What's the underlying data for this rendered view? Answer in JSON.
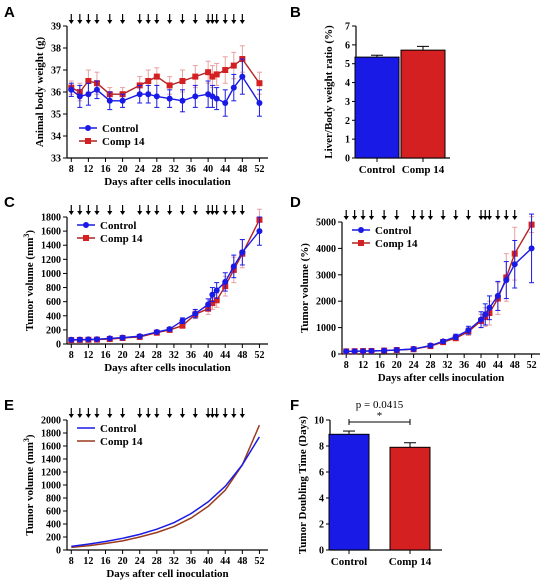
{
  "colors": {
    "control": "#1a1ae6",
    "comp14": "#b22222",
    "comp14_marker": "#d42020",
    "comp14_line": "#9a3a1e",
    "errbar": "#e8a0a0",
    "arrow": "#000000"
  },
  "chart_data": [
    {
      "id": "A",
      "letter": "A",
      "type": "line",
      "xlabel": "Days after cells inoculation",
      "ylabel": "Animal body weight (g)",
      "xlim": [
        7,
        54
      ],
      "ylim": [
        33,
        39
      ],
      "xticks": [
        8,
        12,
        16,
        20,
        24,
        28,
        32,
        36,
        40,
        44,
        48,
        52
      ],
      "yticks": [
        33,
        34,
        35,
        36,
        37,
        38,
        39
      ],
      "arrows": [
        8,
        10,
        12,
        14,
        17,
        20,
        24,
        26,
        28,
        31,
        34,
        37,
        40,
        41,
        42,
        44,
        46,
        48
      ],
      "legend": "bottom-left",
      "series": [
        {
          "name": "Control",
          "color": "control",
          "x": [
            8,
            10,
            12,
            14,
            17,
            20,
            24,
            26,
            28,
            31,
            34,
            37,
            40,
            41,
            42,
            44,
            46,
            48,
            52
          ],
          "y": [
            36.1,
            35.8,
            35.9,
            36.1,
            35.6,
            35.6,
            35.9,
            35.9,
            35.8,
            35.7,
            35.6,
            35.8,
            35.9,
            35.8,
            35.7,
            35.5,
            36.2,
            36.7,
            35.5
          ],
          "err": [
            0.3,
            0.5,
            0.5,
            0.4,
            0.4,
            0.3,
            0.4,
            0.4,
            0.5,
            0.4,
            0.5,
            0.5,
            0.6,
            0.5,
            0.5,
            0.6,
            0.6,
            0.8,
            0.6
          ]
        },
        {
          "name": "Comp 14",
          "color": "comp14",
          "x": [
            8,
            10,
            12,
            14,
            17,
            20,
            24,
            26,
            28,
            31,
            34,
            37,
            40,
            41,
            42,
            44,
            46,
            48,
            52
          ],
          "y": [
            36.2,
            36.0,
            36.5,
            36.4,
            35.9,
            35.9,
            36.3,
            36.5,
            36.7,
            36.3,
            36.5,
            36.7,
            36.9,
            36.7,
            36.8,
            37.0,
            37.2,
            37.5,
            36.4
          ],
          "err": [
            0.3,
            0.4,
            0.5,
            0.5,
            0.3,
            0.3,
            0.4,
            0.5,
            0.4,
            0.4,
            0.5,
            0.5,
            0.5,
            0.5,
            0.5,
            0.6,
            0.6,
            0.6,
            0.5
          ]
        }
      ]
    },
    {
      "id": "B",
      "letter": "B",
      "type": "bar",
      "xlabel": "",
      "ylabel": "Liver/Body weight ratio (%)",
      "ylim": [
        0,
        7
      ],
      "yticks": [
        0,
        1,
        2,
        3,
        4,
        5,
        6,
        7
      ],
      "categories": [
        "Control",
        "Comp 14"
      ],
      "values": [
        5.35,
        5.72
      ],
      "err": [
        0.1,
        0.2
      ],
      "bar_colors": [
        "control",
        "comp14_marker"
      ]
    },
    {
      "id": "C",
      "letter": "C",
      "type": "line",
      "xlabel": "Days after cells inoculation",
      "ylabel": "Tumor volume (mm³)",
      "xlim": [
        7,
        54
      ],
      "ylim": [
        0,
        1800
      ],
      "xticks": [
        8,
        12,
        16,
        20,
        24,
        28,
        32,
        36,
        40,
        44,
        48,
        52
      ],
      "yticks": [
        0,
        200,
        400,
        600,
        800,
        1000,
        1200,
        1400,
        1600,
        1800
      ],
      "arrows": [
        8,
        10,
        12,
        14,
        17,
        20,
        24,
        26,
        28,
        31,
        34,
        37,
        40,
        41,
        42,
        44,
        46,
        48
      ],
      "legend": "top-left",
      "series": [
        {
          "name": "Control",
          "color": "control",
          "x": [
            8,
            10,
            12,
            14,
            17,
            20,
            24,
            28,
            31,
            34,
            37,
            40,
            41,
            42,
            44,
            46,
            48,
            52
          ],
          "y": [
            60,
            62,
            65,
            68,
            80,
            90,
            110,
            170,
            210,
            330,
            430,
            560,
            700,
            760,
            880,
            1100,
            1300,
            1600
          ],
          "err": [
            5,
            5,
            6,
            6,
            8,
            10,
            12,
            20,
            25,
            40,
            60,
            80,
            100,
            110,
            130,
            160,
            180,
            200
          ]
        },
        {
          "name": "Comp 14",
          "color": "comp14",
          "x": [
            8,
            10,
            12,
            14,
            17,
            20,
            24,
            28,
            31,
            34,
            37,
            40,
            41,
            42,
            44,
            46,
            48,
            52
          ],
          "y": [
            55,
            58,
            60,
            62,
            70,
            85,
            100,
            160,
            200,
            260,
            420,
            500,
            580,
            620,
            820,
            1050,
            1280,
            1760
          ],
          "err": [
            5,
            5,
            5,
            6,
            8,
            10,
            12,
            20,
            25,
            35,
            60,
            80,
            90,
            100,
            140,
            180,
            200,
            150
          ]
        }
      ]
    },
    {
      "id": "D",
      "letter": "D",
      "type": "line",
      "xlabel": "Days after cells inoculation",
      "ylabel": "Tumor volume (%)",
      "xlim": [
        7,
        54
      ],
      "ylim": [
        0,
        5000
      ],
      "xticks": [
        8,
        12,
        16,
        20,
        24,
        28,
        32,
        36,
        40,
        44,
        48,
        52
      ],
      "yticks": [
        0,
        1000,
        2000,
        3000,
        4000,
        5000
      ],
      "arrows": [
        8,
        10,
        12,
        14,
        17,
        20,
        24,
        26,
        28,
        31,
        34,
        37,
        40,
        41,
        42,
        44,
        46,
        48
      ],
      "legend": "top-left",
      "series": [
        {
          "name": "Control",
          "color": "control",
          "x": [
            8,
            10,
            12,
            14,
            17,
            20,
            24,
            28,
            31,
            34,
            37,
            40,
            41,
            42,
            44,
            46,
            48,
            52
          ],
          "y": [
            100,
            105,
            110,
            115,
            130,
            150,
            190,
            320,
            480,
            650,
            900,
            1300,
            1500,
            1750,
            2200,
            2800,
            3400,
            4000
          ],
          "err": [
            10,
            10,
            12,
            15,
            20,
            25,
            30,
            50,
            70,
            100,
            150,
            300,
            400,
            450,
            550,
            700,
            900,
            1300
          ]
        },
        {
          "name": "Comp 14",
          "color": "comp14",
          "x": [
            8,
            10,
            12,
            14,
            17,
            20,
            24,
            28,
            31,
            34,
            37,
            40,
            41,
            42,
            44,
            46,
            48,
            52
          ],
          "y": [
            100,
            105,
            110,
            115,
            130,
            150,
            180,
            300,
            450,
            600,
            850,
            1250,
            1400,
            1550,
            2100,
            2900,
            3800,
            4900
          ],
          "err": [
            10,
            10,
            12,
            15,
            20,
            25,
            30,
            50,
            70,
            100,
            150,
            250,
            350,
            450,
            600,
            900,
            1000,
            300
          ]
        }
      ]
    },
    {
      "id": "E",
      "letter": "E",
      "type": "line",
      "xlabel": "Days after cell inoculation",
      "ylabel": "Tumor volume (mm³)",
      "xlim": [
        7,
        54
      ],
      "ylim": [
        0,
        2000
      ],
      "xticks": [
        8,
        12,
        16,
        20,
        24,
        28,
        32,
        36,
        40,
        44,
        48,
        52
      ],
      "yticks": [
        0,
        200,
        400,
        600,
        800,
        1000,
        1200,
        1400,
        1600,
        1800,
        2000
      ],
      "arrows": [
        8,
        10,
        12,
        14,
        17,
        20,
        24,
        26,
        28,
        31,
        34,
        37,
        40,
        41,
        42,
        44,
        46,
        48
      ],
      "legend": "top-left",
      "series": [
        {
          "name": "Control",
          "color": "control",
          "x": [
            8,
            12,
            16,
            20,
            24,
            28,
            32,
            36,
            40,
            44,
            48,
            52
          ],
          "y": [
            55,
            90,
            130,
            180,
            240,
            320,
            420,
            560,
            740,
            980,
            1310,
            1740
          ]
        },
        {
          "name": "Comp 14",
          "color": "comp14_line",
          "x": [
            8,
            12,
            16,
            20,
            24,
            28,
            32,
            36,
            40,
            44,
            48,
            52
          ],
          "y": [
            40,
            65,
            100,
            140,
            200,
            270,
            360,
            490,
            670,
            920,
            1310,
            1920
          ]
        }
      ]
    },
    {
      "id": "F",
      "letter": "F",
      "type": "bar",
      "xlabel": "",
      "ylabel": "Tumor Doubling Time (Days)",
      "ylim": [
        0,
        10
      ],
      "yticks": [
        0,
        2,
        4,
        6,
        8,
        10
      ],
      "categories": [
        "Control",
        "Comp 14"
      ],
      "values": [
        8.9,
        7.9
      ],
      "err": [
        0.25,
        0.35
      ],
      "bar_colors": [
        "control",
        "comp14_marker"
      ],
      "pvalue_label": "p = 0.0415",
      "sig_mark": "*"
    }
  ]
}
